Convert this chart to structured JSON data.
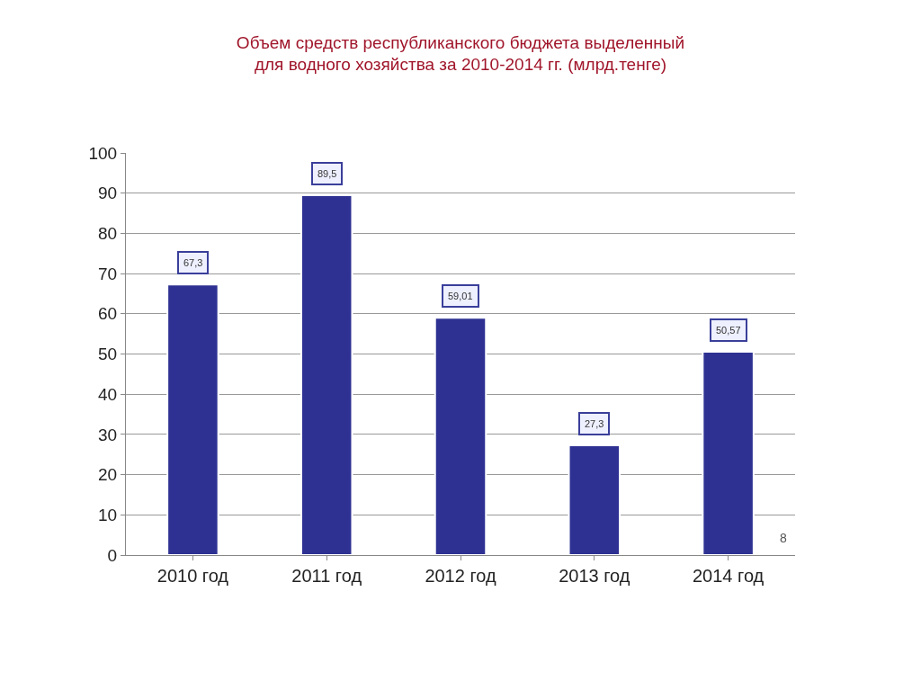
{
  "chart_data": {
    "type": "bar",
    "title": "Объем средств республиканского бюджета выделенный\nдля водного хозяйства за 2010-2014 гг. (млрд.тенге)",
    "categories": [
      "2010 год",
      "2011 год",
      "2012 год",
      "2013 год",
      "2014 год"
    ],
    "values": [
      67.3,
      89.5,
      59.01,
      27.3,
      50.57
    ],
    "value_labels": [
      "67,3",
      "89,5",
      "59,01",
      "27,3",
      "50,57"
    ],
    "color": "#2e3192",
    "ylim": [
      0,
      100
    ],
    "yticks": [
      0,
      10,
      20,
      30,
      40,
      50,
      60,
      70,
      80,
      90,
      100
    ],
    "grid": "y",
    "legend": false,
    "annotations": [
      "8"
    ]
  }
}
